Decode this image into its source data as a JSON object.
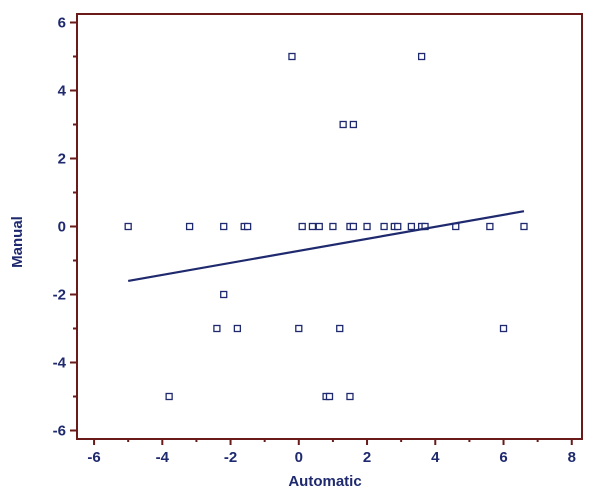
{
  "chart_data": {
    "type": "scatter",
    "title": "",
    "xlabel": "Automatic",
    "ylabel": "Manual",
    "xlim": [
      -6.5,
      8.3
    ],
    "ylim": [
      -6.25,
      6.25
    ],
    "x_ticks": [
      -6,
      -4,
      -2,
      0,
      2,
      4,
      6,
      8
    ],
    "y_ticks": [
      -6,
      -4,
      -2,
      0,
      2,
      4,
      6
    ],
    "grid": false,
    "legend": "none",
    "colors": {
      "frame": "#6b1a1a",
      "marks": "#1f2a6e",
      "text": "#1f2a6e"
    },
    "points": [
      {
        "x": -5.0,
        "y": 0
      },
      {
        "x": -3.2,
        "y": 0
      },
      {
        "x": -2.2,
        "y": 0
      },
      {
        "x": -1.6,
        "y": 0
      },
      {
        "x": -1.5,
        "y": 0
      },
      {
        "x": 0.1,
        "y": 0
      },
      {
        "x": 0.4,
        "y": 0
      },
      {
        "x": 0.6,
        "y": 0
      },
      {
        "x": 1.0,
        "y": 0
      },
      {
        "x": 1.5,
        "y": 0
      },
      {
        "x": 1.6,
        "y": 0
      },
      {
        "x": 2.0,
        "y": 0
      },
      {
        "x": 2.5,
        "y": 0
      },
      {
        "x": 2.8,
        "y": 0
      },
      {
        "x": 2.9,
        "y": 0
      },
      {
        "x": 3.3,
        "y": 0
      },
      {
        "x": 3.6,
        "y": 0
      },
      {
        "x": 3.7,
        "y": 0
      },
      {
        "x": 4.6,
        "y": 0
      },
      {
        "x": 5.6,
        "y": 0
      },
      {
        "x": 6.6,
        "y": 0
      },
      {
        "x": -0.2,
        "y": 5
      },
      {
        "x": 3.6,
        "y": 5
      },
      {
        "x": 1.3,
        "y": 3
      },
      {
        "x": 1.6,
        "y": 3
      },
      {
        "x": -2.2,
        "y": -2
      },
      {
        "x": -2.4,
        "y": -3
      },
      {
        "x": -1.8,
        "y": -3
      },
      {
        "x": 0.0,
        "y": -3
      },
      {
        "x": 1.2,
        "y": -3
      },
      {
        "x": 6.0,
        "y": -3
      },
      {
        "x": -3.8,
        "y": -5
      },
      {
        "x": 0.8,
        "y": -5
      },
      {
        "x": 0.9,
        "y": -5
      },
      {
        "x": 1.5,
        "y": -5
      }
    ],
    "regression_line": {
      "x": [
        -5.0,
        6.6
      ],
      "y": [
        -1.6,
        0.45
      ]
    }
  }
}
